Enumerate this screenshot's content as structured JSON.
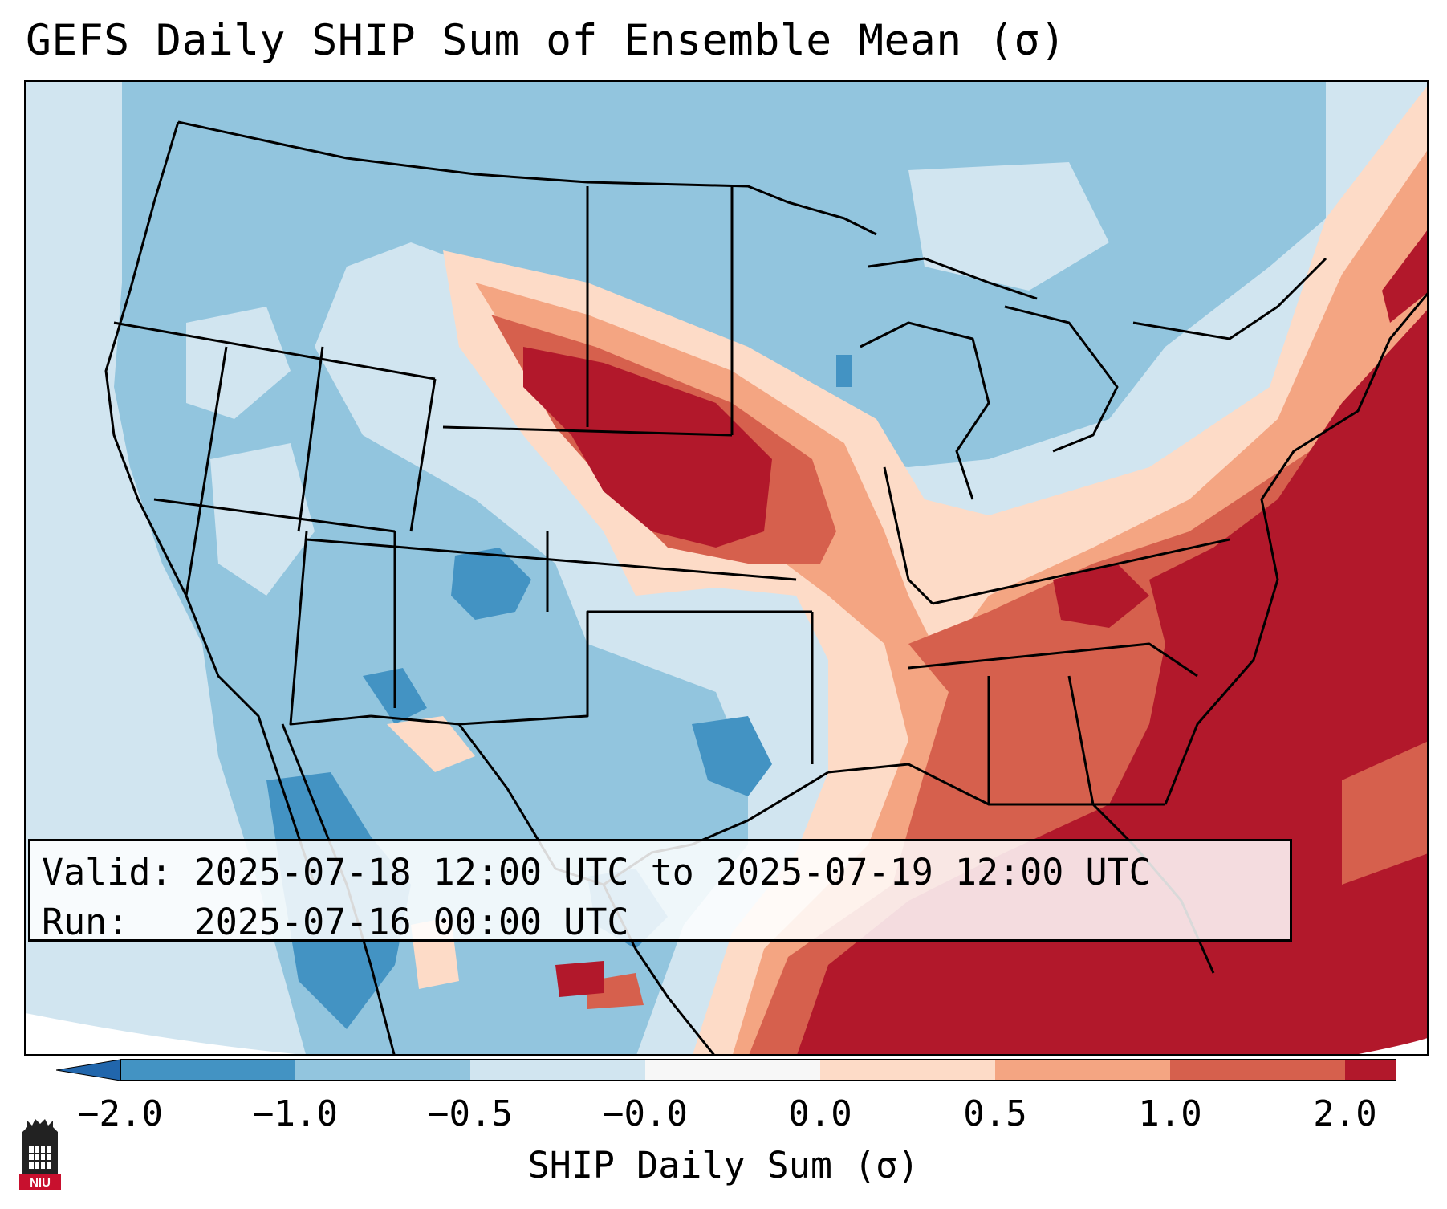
{
  "title": "GEFS Daily SHIP Sum of Ensemble Mean (σ)",
  "info": {
    "valid_label": "Valid:",
    "valid_text": "2025-07-18 12:00 UTC to 2025-07-19 12:00 UTC",
    "run_label": "Run:",
    "run_text": "2025-07-16 00:00 UTC"
  },
  "colorbar": {
    "label": "SHIP Daily Sum (σ)",
    "ticks": [
      "−2.0",
      "−1.0",
      "−0.5",
      "−0.0",
      "0.0",
      "0.5",
      "1.0",
      "2.0"
    ],
    "colors": [
      "#4393c3",
      "#92c5de",
      "#d1e5f0",
      "#f7f7f7",
      "#fddbc7",
      "#f4a582",
      "#d6604d",
      "#b2182b"
    ],
    "extend_low_color": "#2166ac",
    "extend_high_color": "#b2182b"
  },
  "logo": {
    "text": "NIU"
  }
}
